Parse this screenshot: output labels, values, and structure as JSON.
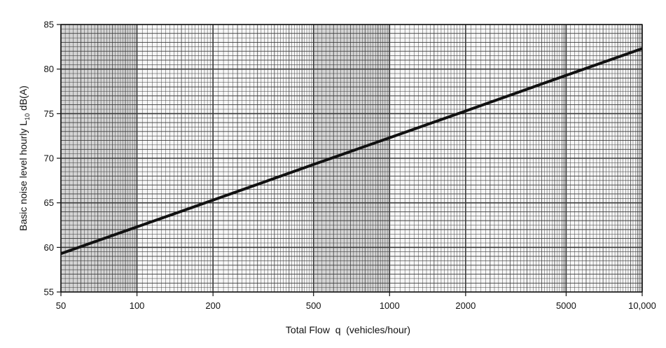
{
  "chart_data": {
    "type": "line",
    "x_scale": "log",
    "y_scale": "linear",
    "xlim": [
      50,
      10000
    ],
    "ylim": [
      55,
      85
    ],
    "grid": true,
    "xlabel": "Total Flow  q  (vehicles/hour)",
    "ylabel_main": "Basic noise level hourly L",
    "ylabel_sub": "10",
    "ylabel_tail": " dB(A)",
    "x_ticks": [
      50,
      100,
      200,
      500,
      1000,
      2000,
      5000,
      10000
    ],
    "x_tick_labels": [
      "50",
      "100",
      "200",
      "500",
      "1000",
      "2000",
      "5000",
      "10,000"
    ],
    "y_ticks": [
      55,
      60,
      65,
      70,
      75,
      80,
      85
    ],
    "y_tick_labels": [
      "55",
      "60",
      "65",
      "70",
      "75",
      "80",
      "85"
    ],
    "series": [
      {
        "x": [
          50,
          100,
          200,
          500,
          1000,
          2000,
          5000,
          10000
        ],
        "y": [
          59.3,
          62.3,
          65.3,
          69.3,
          72.3,
          75.3,
          79.3,
          82.3
        ]
      }
    ],
    "line_color": "#111111",
    "grid_color": "#3a3a3a"
  }
}
